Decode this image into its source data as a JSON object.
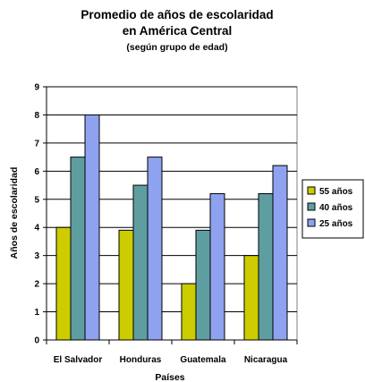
{
  "chart_data": {
    "type": "bar",
    "title_line1": "Promedio de años de escolaridad",
    "title_line2": "en América Central",
    "subtitle": "(según grupo de edad)",
    "xlabel": "Países",
    "ylabel": "Años de escolaridad",
    "categories": [
      "El Salvador",
      "Honduras",
      "Guatemala",
      "Nicaragua"
    ],
    "ylim": [
      0,
      9
    ],
    "yticks": [
      "0",
      "1",
      "2",
      "3",
      "4",
      "5",
      "6",
      "7",
      "8",
      "9"
    ],
    "grid": true,
    "legend_position": "right",
    "series": [
      {
        "name": "55 años",
        "color": "#CCCC00",
        "values": [
          4,
          3.9,
          2,
          3
        ]
      },
      {
        "name": "40 años",
        "color": "#5F9EA0",
        "values": [
          6.5,
          5.5,
          3.9,
          5.2
        ]
      },
      {
        "name": "25 años",
        "color": "#8EA2F0",
        "values": [
          8,
          6.5,
          5.2,
          6.2
        ]
      }
    ]
  }
}
